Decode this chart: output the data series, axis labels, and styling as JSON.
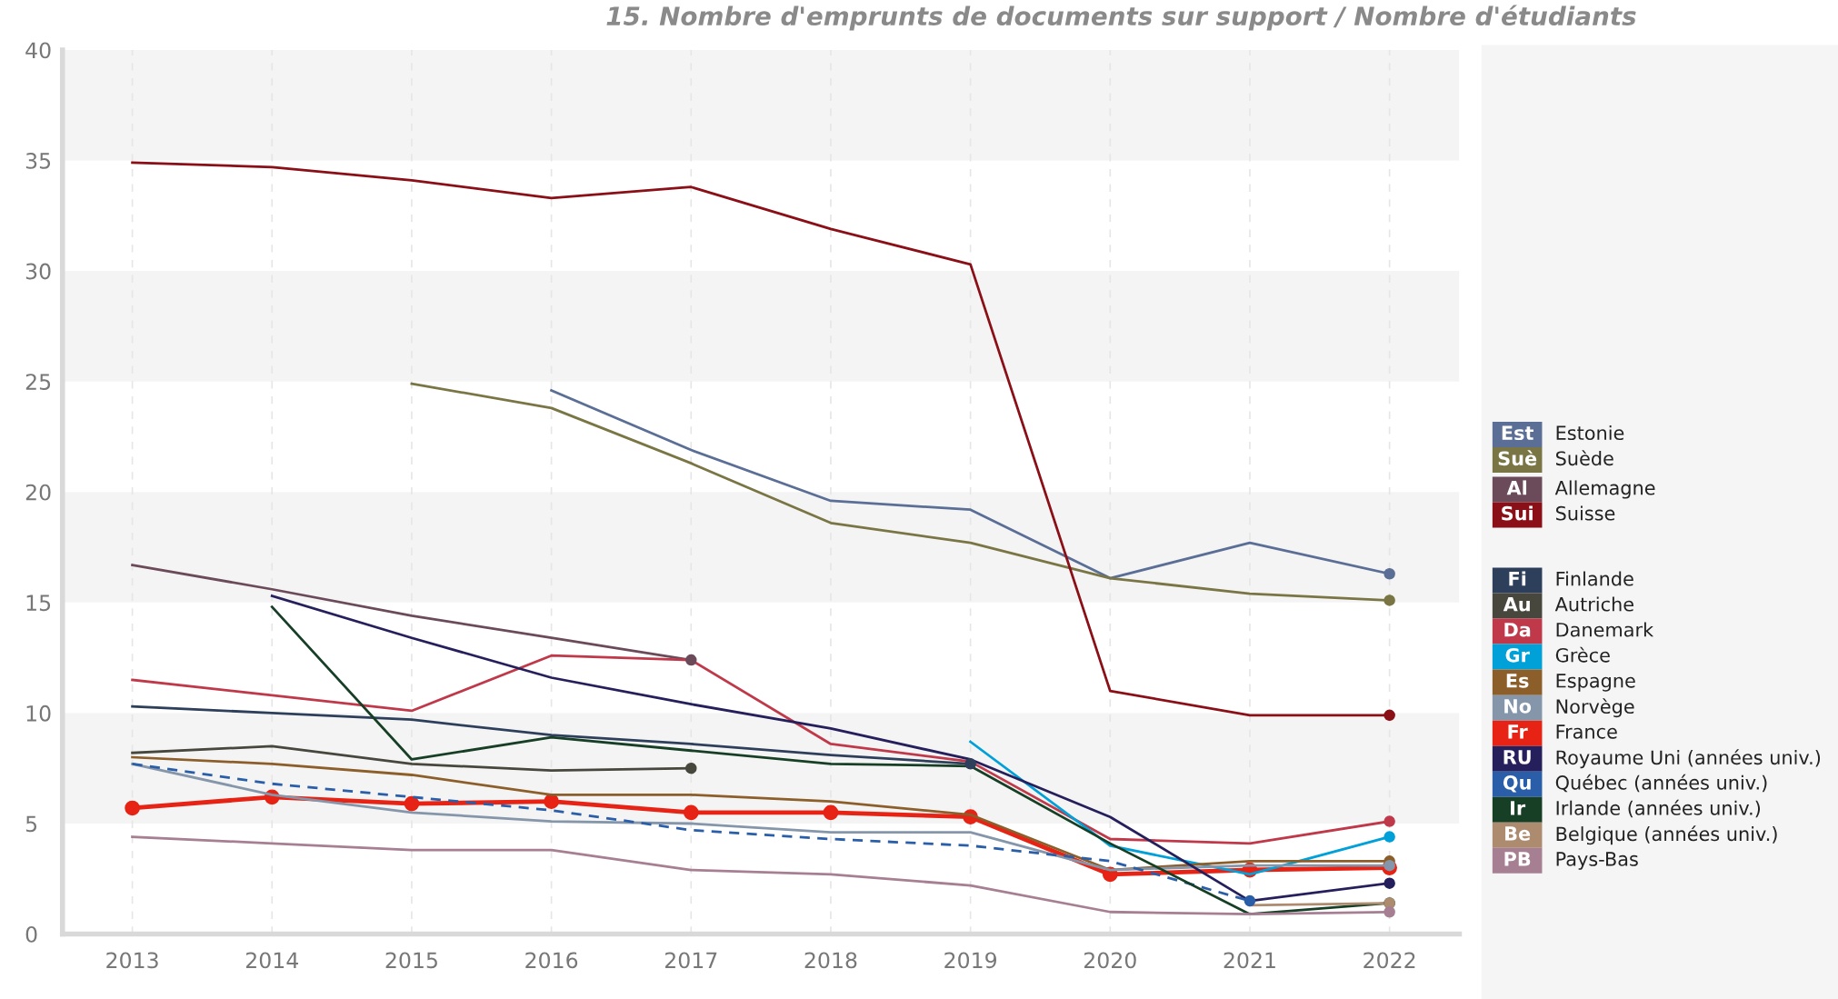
{
  "chart_data": {
    "type": "line",
    "title": "15. Nombre d'emprunts de documents sur support / Nombre d'étudiants",
    "categories": [
      "2013",
      "2014",
      "2015",
      "2016",
      "2017",
      "2018",
      "2019",
      "2020",
      "2021",
      "2022"
    ],
    "ylim": [
      0,
      40
    ],
    "yticks": [
      0,
      5,
      10,
      15,
      20,
      25,
      30,
      35,
      40
    ],
    "grid": "x",
    "legend": "right",
    "line_style": "solid",
    "annotations": [
      "Est",
      "Suè",
      "Al",
      "Sui",
      "Fi",
      "Au",
      "Da",
      "Gr",
      "Es",
      "No",
      "Fr",
      "RU",
      "Qu",
      "Ir",
      "Be",
      "PB"
    ],
    "bands": [
      {
        "axis": "y",
        "from": 5,
        "to": 10,
        "label": null,
        "color": "#f4f4f4"
      },
      {
        "axis": "y",
        "from": 15,
        "to": 20,
        "label": null,
        "color": "#f4f4f4"
      },
      {
        "axis": "y",
        "from": 25,
        "to": 30,
        "label": null,
        "color": "#f4f4f4"
      },
      {
        "axis": "y",
        "from": 35,
        "to": 40,
        "label": null,
        "color": "#f4f4f4"
      }
    ],
    "series": [
      {
        "name": "Estonie",
        "color": "#5a6e96",
        "values": [
          null,
          null,
          null,
          24.6,
          21.9,
          19.6,
          19.2,
          16.1,
          17.7,
          16.3
        ]
      },
      {
        "name": "Suède",
        "color": "#7a7544",
        "values": [
          null,
          null,
          24.9,
          23.8,
          21.3,
          18.6,
          17.7,
          16.1,
          15.4,
          15.1
        ]
      },
      {
        "name": "Allemagne",
        "color": "#6b4a5a",
        "values": [
          16.7,
          15.6,
          14.4,
          13.4,
          12.4,
          null,
          null,
          null,
          null,
          null
        ]
      },
      {
        "name": "Suisse",
        "color": "#8a0f17",
        "values": [
          34.9,
          34.7,
          34.1,
          33.3,
          33.8,
          31.9,
          30.3,
          11.0,
          9.9,
          9.9
        ]
      },
      {
        "name": "Finlande",
        "color": "#2e3f5c",
        "values": [
          10.3,
          10.0,
          9.7,
          9.0,
          8.6,
          8.1,
          7.7,
          null,
          null,
          null
        ]
      },
      {
        "name": "Autriche",
        "color": "#47473d",
        "values": [
          8.2,
          8.5,
          7.7,
          7.4,
          7.5,
          null,
          null,
          null,
          null,
          null
        ]
      },
      {
        "name": "Danemark",
        "color": "#c0394a",
        "values": [
          11.5,
          10.8,
          10.1,
          12.6,
          12.4,
          8.6,
          7.8,
          4.3,
          4.1,
          5.1
        ]
      },
      {
        "name": "Grèce",
        "color": "#00a0d8",
        "values": [
          null,
          null,
          null,
          null,
          null,
          null,
          8.7,
          4.0,
          2.7,
          4.4
        ]
      },
      {
        "name": "Espagne",
        "color": "#8c5e2a",
        "values": [
          8.0,
          7.7,
          7.2,
          6.3,
          6.3,
          6.0,
          5.4,
          2.9,
          3.3,
          3.3
        ]
      },
      {
        "name": "Norvège",
        "color": "#8596aa",
        "values": [
          7.7,
          6.3,
          5.5,
          5.1,
          5.0,
          4.6,
          4.6,
          2.9,
          3.1,
          3.1
        ]
      },
      {
        "name": "France",
        "color": "#e62314",
        "marker": "circle",
        "values": [
          5.7,
          6.2,
          5.9,
          6.0,
          5.5,
          5.5,
          5.3,
          2.7,
          2.9,
          3.0
        ]
      },
      {
        "name": "Royaume Uni (années univ.)",
        "color": "#251f5c",
        "values": [
          null,
          15.3,
          13.4,
          11.6,
          10.4,
          9.3,
          7.9,
          5.3,
          1.5,
          2.3
        ]
      },
      {
        "name": "Québec (années univ.)",
        "color": "#2a5ea8",
        "line_style": "dashed",
        "values": [
          7.7,
          6.8,
          6.2,
          5.6,
          4.7,
          4.3,
          4.0,
          3.3,
          1.5,
          null
        ]
      },
      {
        "name": "Irlande (années univ.)",
        "color": "#163f26",
        "values": [
          null,
          14.8,
          7.9,
          8.9,
          8.3,
          7.7,
          7.6,
          4.1,
          0.9,
          1.4
        ]
      },
      {
        "name": "Belgique (années univ.)",
        "color": "#ad8b6e",
        "values": [
          null,
          null,
          null,
          null,
          null,
          null,
          null,
          null,
          1.3,
          1.4
        ]
      },
      {
        "name": "Pays-Bas",
        "color": "#a77f92",
        "values": [
          4.4,
          4.1,
          3.8,
          3.8,
          2.9,
          2.7,
          2.2,
          1.0,
          0.9,
          1.0
        ]
      }
    ]
  }
}
